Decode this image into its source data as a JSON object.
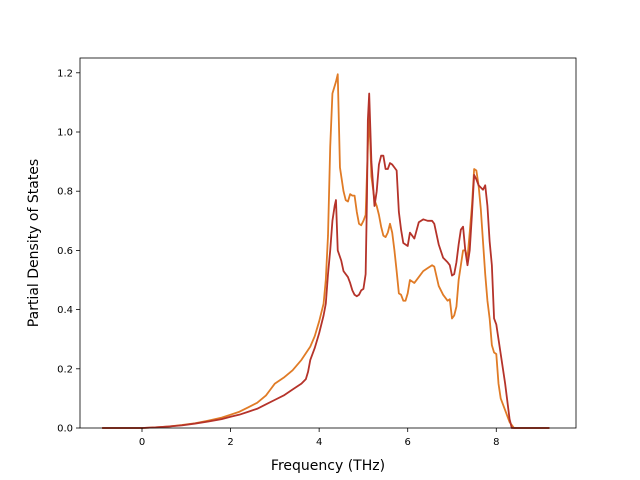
{
  "chart_data": {
    "type": "line",
    "xlabel": "Frequency (THz)",
    "ylabel": "Partial Density of States",
    "xlim": [
      -1.4,
      9.8
    ],
    "ylim": [
      0,
      1.25
    ],
    "xticks": [
      0,
      2,
      4,
      6,
      8
    ],
    "yticks": [
      0.0,
      0.2,
      0.4,
      0.6,
      0.8,
      1.0,
      1.2
    ],
    "grid": false,
    "series": [
      {
        "color": "#e07b26",
        "points": [
          [
            -0.9,
            0
          ],
          [
            -0.3,
            0
          ],
          [
            0,
            0
          ],
          [
            0.3,
            0.002
          ],
          [
            0.6,
            0.005
          ],
          [
            0.9,
            0.01
          ],
          [
            1.2,
            0.016
          ],
          [
            1.5,
            0.025
          ],
          [
            1.8,
            0.035
          ],
          [
            2.0,
            0.045
          ],
          [
            2.2,
            0.055
          ],
          [
            2.4,
            0.07
          ],
          [
            2.6,
            0.085
          ],
          [
            2.8,
            0.11
          ],
          [
            2.9,
            0.13
          ],
          [
            3.0,
            0.15
          ],
          [
            3.2,
            0.17
          ],
          [
            3.4,
            0.195
          ],
          [
            3.6,
            0.23
          ],
          [
            3.8,
            0.275
          ],
          [
            3.9,
            0.31
          ],
          [
            4.0,
            0.36
          ],
          [
            4.1,
            0.42
          ],
          [
            4.15,
            0.5
          ],
          [
            4.2,
            0.65
          ],
          [
            4.25,
            0.95
          ],
          [
            4.3,
            1.13
          ],
          [
            4.38,
            1.17
          ],
          [
            4.42,
            1.195
          ],
          [
            4.47,
            0.88
          ],
          [
            4.55,
            0.8
          ],
          [
            4.6,
            0.77
          ],
          [
            4.65,
            0.765
          ],
          [
            4.7,
            0.79
          ],
          [
            4.75,
            0.785
          ],
          [
            4.8,
            0.785
          ],
          [
            4.85,
            0.73
          ],
          [
            4.9,
            0.69
          ],
          [
            4.95,
            0.685
          ],
          [
            5.0,
            0.7
          ],
          [
            5.05,
            0.72
          ],
          [
            5.1,
            0.95
          ],
          [
            5.13,
            1.07
          ],
          [
            5.18,
            0.85
          ],
          [
            5.25,
            0.77
          ],
          [
            5.3,
            0.75
          ],
          [
            5.35,
            0.72
          ],
          [
            5.4,
            0.68
          ],
          [
            5.45,
            0.65
          ],
          [
            5.5,
            0.645
          ],
          [
            5.55,
            0.66
          ],
          [
            5.6,
            0.69
          ],
          [
            5.65,
            0.66
          ],
          [
            5.7,
            0.6
          ],
          [
            5.75,
            0.53
          ],
          [
            5.8,
            0.455
          ],
          [
            5.85,
            0.45
          ],
          [
            5.9,
            0.43
          ],
          [
            5.95,
            0.43
          ],
          [
            6.0,
            0.455
          ],
          [
            6.05,
            0.5
          ],
          [
            6.15,
            0.49
          ],
          [
            6.25,
            0.51
          ],
          [
            6.35,
            0.53
          ],
          [
            6.45,
            0.54
          ],
          [
            6.55,
            0.55
          ],
          [
            6.6,
            0.545
          ],
          [
            6.7,
            0.48
          ],
          [
            6.8,
            0.45
          ],
          [
            6.9,
            0.43
          ],
          [
            6.95,
            0.435
          ],
          [
            7.0,
            0.37
          ],
          [
            7.05,
            0.38
          ],
          [
            7.1,
            0.41
          ],
          [
            7.15,
            0.5
          ],
          [
            7.2,
            0.55
          ],
          [
            7.25,
            0.6
          ],
          [
            7.3,
            0.6
          ],
          [
            7.35,
            0.575
          ],
          [
            7.4,
            0.66
          ],
          [
            7.45,
            0.75
          ],
          [
            7.5,
            0.875
          ],
          [
            7.55,
            0.87
          ],
          [
            7.6,
            0.82
          ],
          [
            7.65,
            0.74
          ],
          [
            7.7,
            0.63
          ],
          [
            7.75,
            0.52
          ],
          [
            7.8,
            0.43
          ],
          [
            7.85,
            0.37
          ],
          [
            7.9,
            0.28
          ],
          [
            7.95,
            0.255
          ],
          [
            8.0,
            0.25
          ],
          [
            8.05,
            0.15
          ],
          [
            8.1,
            0.1
          ],
          [
            8.2,
            0.06
          ],
          [
            8.3,
            0.02
          ],
          [
            8.4,
            0
          ],
          [
            9.2,
            0
          ]
        ]
      },
      {
        "color": "#b5332a",
        "points": [
          [
            -0.9,
            0
          ],
          [
            -0.3,
            0
          ],
          [
            0,
            0
          ],
          [
            0.3,
            0.002
          ],
          [
            0.6,
            0.005
          ],
          [
            0.9,
            0.009
          ],
          [
            1.2,
            0.015
          ],
          [
            1.5,
            0.022
          ],
          [
            1.8,
            0.03
          ],
          [
            2.0,
            0.038
          ],
          [
            2.2,
            0.045
          ],
          [
            2.4,
            0.055
          ],
          [
            2.6,
            0.065
          ],
          [
            2.8,
            0.08
          ],
          [
            3.0,
            0.095
          ],
          [
            3.2,
            0.11
          ],
          [
            3.4,
            0.13
          ],
          [
            3.6,
            0.15
          ],
          [
            3.7,
            0.165
          ],
          [
            3.75,
            0.19
          ],
          [
            3.8,
            0.23
          ],
          [
            3.9,
            0.27
          ],
          [
            4.0,
            0.32
          ],
          [
            4.1,
            0.38
          ],
          [
            4.15,
            0.42
          ],
          [
            4.2,
            0.52
          ],
          [
            4.25,
            0.6
          ],
          [
            4.3,
            0.7
          ],
          [
            4.35,
            0.75
          ],
          [
            4.38,
            0.77
          ],
          [
            4.42,
            0.6
          ],
          [
            4.5,
            0.565
          ],
          [
            4.55,
            0.53
          ],
          [
            4.65,
            0.51
          ],
          [
            4.7,
            0.49
          ],
          [
            4.75,
            0.465
          ],
          [
            4.8,
            0.45
          ],
          [
            4.85,
            0.445
          ],
          [
            4.9,
            0.45
          ],
          [
            4.95,
            0.465
          ],
          [
            5.0,
            0.47
          ],
          [
            5.05,
            0.52
          ],
          [
            5.08,
            0.78
          ],
          [
            5.1,
            1.04
          ],
          [
            5.13,
            1.13
          ],
          [
            5.18,
            0.9
          ],
          [
            5.25,
            0.75
          ],
          [
            5.3,
            0.8
          ],
          [
            5.35,
            0.89
          ],
          [
            5.4,
            0.92
          ],
          [
            5.45,
            0.92
          ],
          [
            5.5,
            0.875
          ],
          [
            5.55,
            0.875
          ],
          [
            5.6,
            0.895
          ],
          [
            5.65,
            0.89
          ],
          [
            5.7,
            0.88
          ],
          [
            5.75,
            0.87
          ],
          [
            5.8,
            0.73
          ],
          [
            5.85,
            0.67
          ],
          [
            5.9,
            0.625
          ],
          [
            6.0,
            0.615
          ],
          [
            6.05,
            0.66
          ],
          [
            6.15,
            0.64
          ],
          [
            6.25,
            0.695
          ],
          [
            6.35,
            0.705
          ],
          [
            6.45,
            0.7
          ],
          [
            6.55,
            0.7
          ],
          [
            6.6,
            0.69
          ],
          [
            6.7,
            0.62
          ],
          [
            6.8,
            0.575
          ],
          [
            6.9,
            0.56
          ],
          [
            6.95,
            0.55
          ],
          [
            7.0,
            0.515
          ],
          [
            7.05,
            0.52
          ],
          [
            7.1,
            0.56
          ],
          [
            7.15,
            0.62
          ],
          [
            7.2,
            0.67
          ],
          [
            7.25,
            0.68
          ],
          [
            7.3,
            0.6
          ],
          [
            7.35,
            0.55
          ],
          [
            7.4,
            0.6
          ],
          [
            7.45,
            0.72
          ],
          [
            7.5,
            0.855
          ],
          [
            7.55,
            0.84
          ],
          [
            7.6,
            0.82
          ],
          [
            7.7,
            0.805
          ],
          [
            7.75,
            0.82
          ],
          [
            7.8,
            0.75
          ],
          [
            7.85,
            0.63
          ],
          [
            7.9,
            0.55
          ],
          [
            7.95,
            0.37
          ],
          [
            8.0,
            0.35
          ],
          [
            8.1,
            0.25
          ],
          [
            8.2,
            0.15
          ],
          [
            8.3,
            0.03
          ],
          [
            8.35,
            0
          ],
          [
            9.2,
            0
          ]
        ]
      }
    ]
  }
}
